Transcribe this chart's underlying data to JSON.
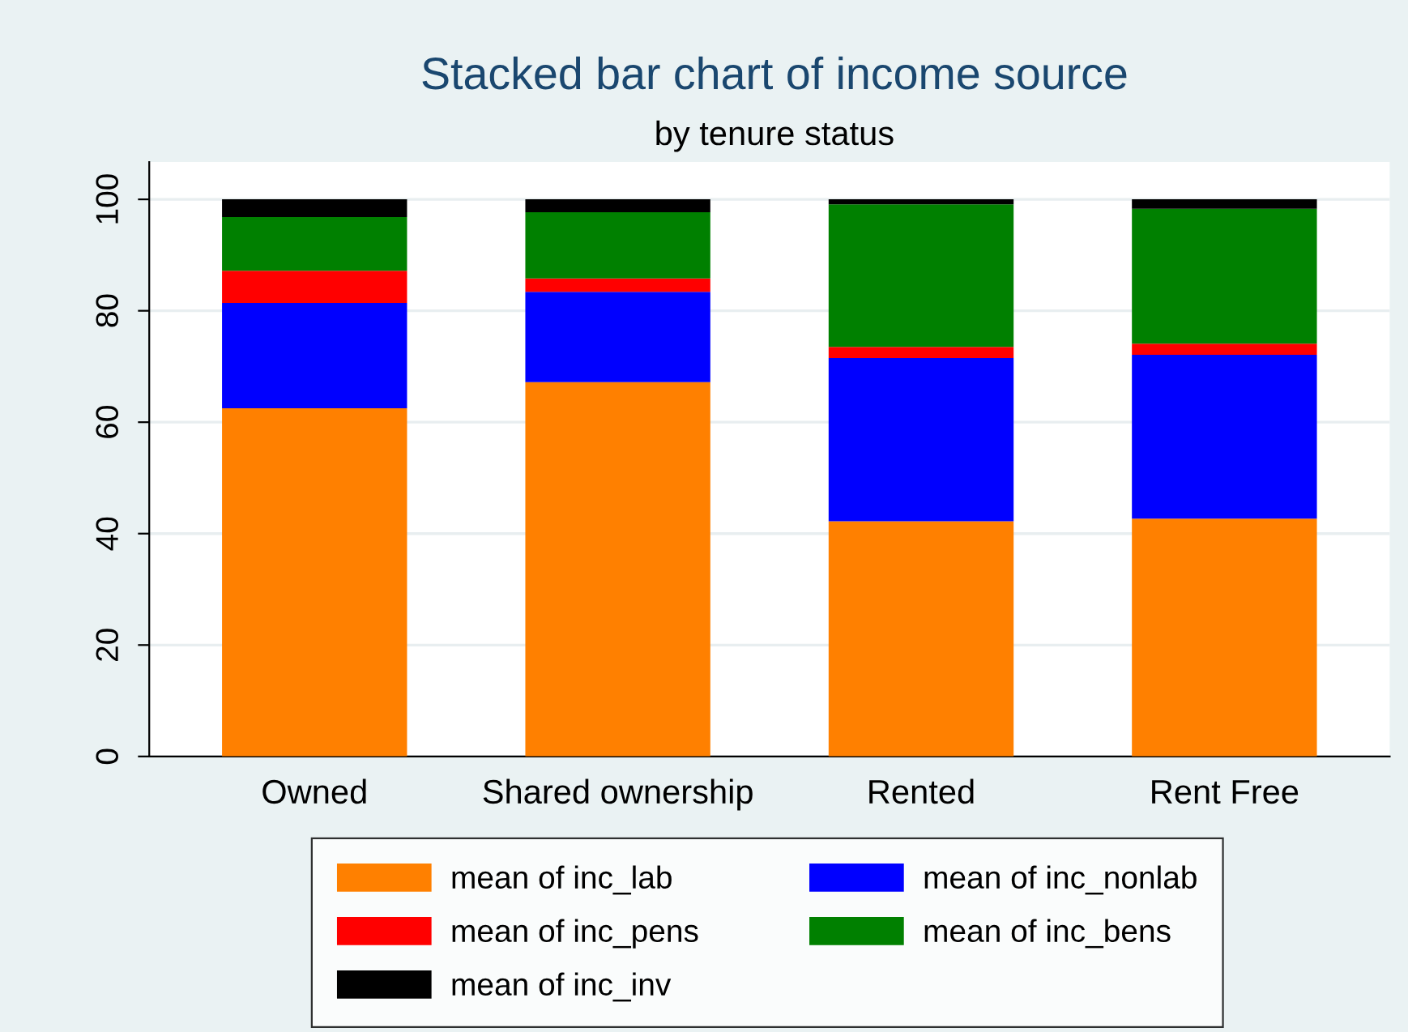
{
  "chart_data": {
    "type": "bar",
    "stacked": true,
    "title": "Stacked bar chart of income source",
    "subtitle": "by tenure status",
    "categories": [
      "Owned",
      "Shared ownership",
      "Rented",
      "Rent Free"
    ],
    "series": [
      {
        "name": "mean of inc_lab",
        "color": "#ff8000",
        "values": [
          62.5,
          67.2,
          42.2,
          42.7
        ]
      },
      {
        "name": "mean of inc_nonlab",
        "color": "#0000ff",
        "values": [
          18.9,
          16.2,
          29.3,
          29.4
        ]
      },
      {
        "name": "mean of inc_pens",
        "color": "#ff0000",
        "values": [
          5.8,
          2.4,
          2.0,
          2.0
        ]
      },
      {
        "name": "mean of inc_bens",
        "color": "#008000",
        "values": [
          9.6,
          11.9,
          25.6,
          24.2
        ]
      },
      {
        "name": "mean of inc_inv",
        "color": "#000000",
        "values": [
          3.2,
          2.3,
          0.9,
          1.7
        ]
      }
    ],
    "ylim": [
      0,
      106.7
    ],
    "yticks": [
      0,
      20,
      40,
      60,
      80,
      100
    ],
    "grid": "y",
    "legend": "bottom"
  }
}
